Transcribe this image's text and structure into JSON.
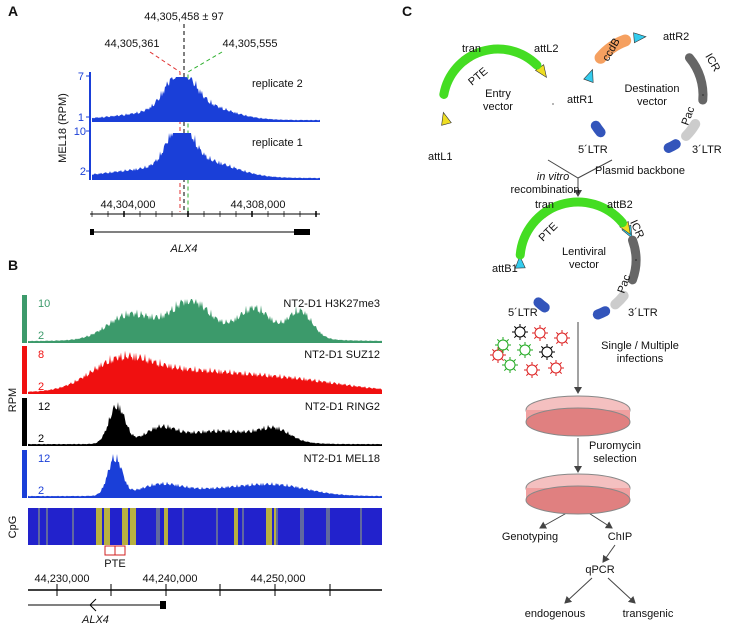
{
  "panel_a": {
    "label": "A",
    "center": "44,305,458 ± 97",
    "left": "44,305,361",
    "right": "44,305,555",
    "y_label": "MEL18 (RPM)",
    "tracks": [
      {
        "name": "replicate 2",
        "max": 7,
        "min": 1
      },
      {
        "name": "replicate 1",
        "max": 10,
        "min": 2
      }
    ],
    "coords": [
      "44,304,000",
      "44,308,000"
    ],
    "gene": "ALX4"
  },
  "panel_b": {
    "label": "B",
    "y_label": "RPM",
    "tracks": [
      {
        "name": "NT2-D1 H3K27me3",
        "max": 10,
        "min": 2,
        "color": "#3c9a6b"
      },
      {
        "name": "NT2-D1 SUZ12",
        "max": 8,
        "min": 2,
        "color": "#f01010"
      },
      {
        "name": "NT2-D1 RING2",
        "max": 12,
        "min": 2,
        "color": "#000000"
      },
      {
        "name": "NT2-D1 MEL18",
        "max": 12,
        "min": 2,
        "color": "#1a3fd8"
      }
    ],
    "cpg": "CpG",
    "pte": "PTE",
    "coords": [
      "44,230,000",
      "44,240,000",
      "44,250,000"
    ],
    "gene": "ALX4"
  },
  "panel_c": {
    "label": "C",
    "entry": {
      "tran": "tran",
      "att_right": "attL2",
      "pte": "PTE",
      "name": [
        "Entry",
        "vector"
      ],
      "att_left": "attL1"
    },
    "destination": {
      "ccdb": "ccdB",
      "att_right": "attR2",
      "icr": "ICR",
      "att_left": "attR1",
      "name": [
        "Destination",
        "vector"
      ],
      "pac": "Pac",
      "ltr5": "5´LTR",
      "ltr3": "3´LTR",
      "backbone": "Plasmid backbone"
    },
    "recombination": [
      "in vitro",
      "recombination"
    ],
    "lentiviral": {
      "tran": "tran",
      "att_right": "attB2",
      "icr": "ICR",
      "pte": "PTE",
      "name": [
        "Lentiviral",
        "vector"
      ],
      "att_left": "attB1",
      "pac": "Pac",
      "ltr5": "5´LTR",
      "ltr3": "3´LTR"
    },
    "infection": [
      "Single / Multiple",
      "infections"
    ],
    "selection": [
      "Puromycin",
      "selection"
    ],
    "genotyping": "Genotyping",
    "chip": "ChIP",
    "qpcr": "qPCR",
    "endogenous": "endogenous",
    "transgenic": "transgenic"
  }
}
